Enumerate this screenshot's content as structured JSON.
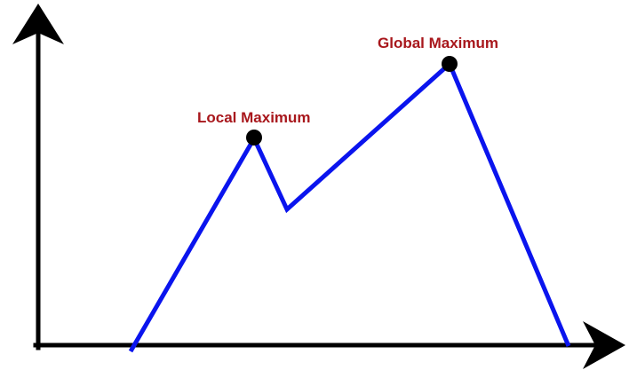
{
  "diagram": {
    "labels": {
      "local_maximum": "Local Maximum",
      "global_maximum": "Global Maximum"
    },
    "colors": {
      "curve": "#0a14ee",
      "axes": "#000000",
      "label": "#a8171c",
      "marker": "#000000"
    }
  }
}
